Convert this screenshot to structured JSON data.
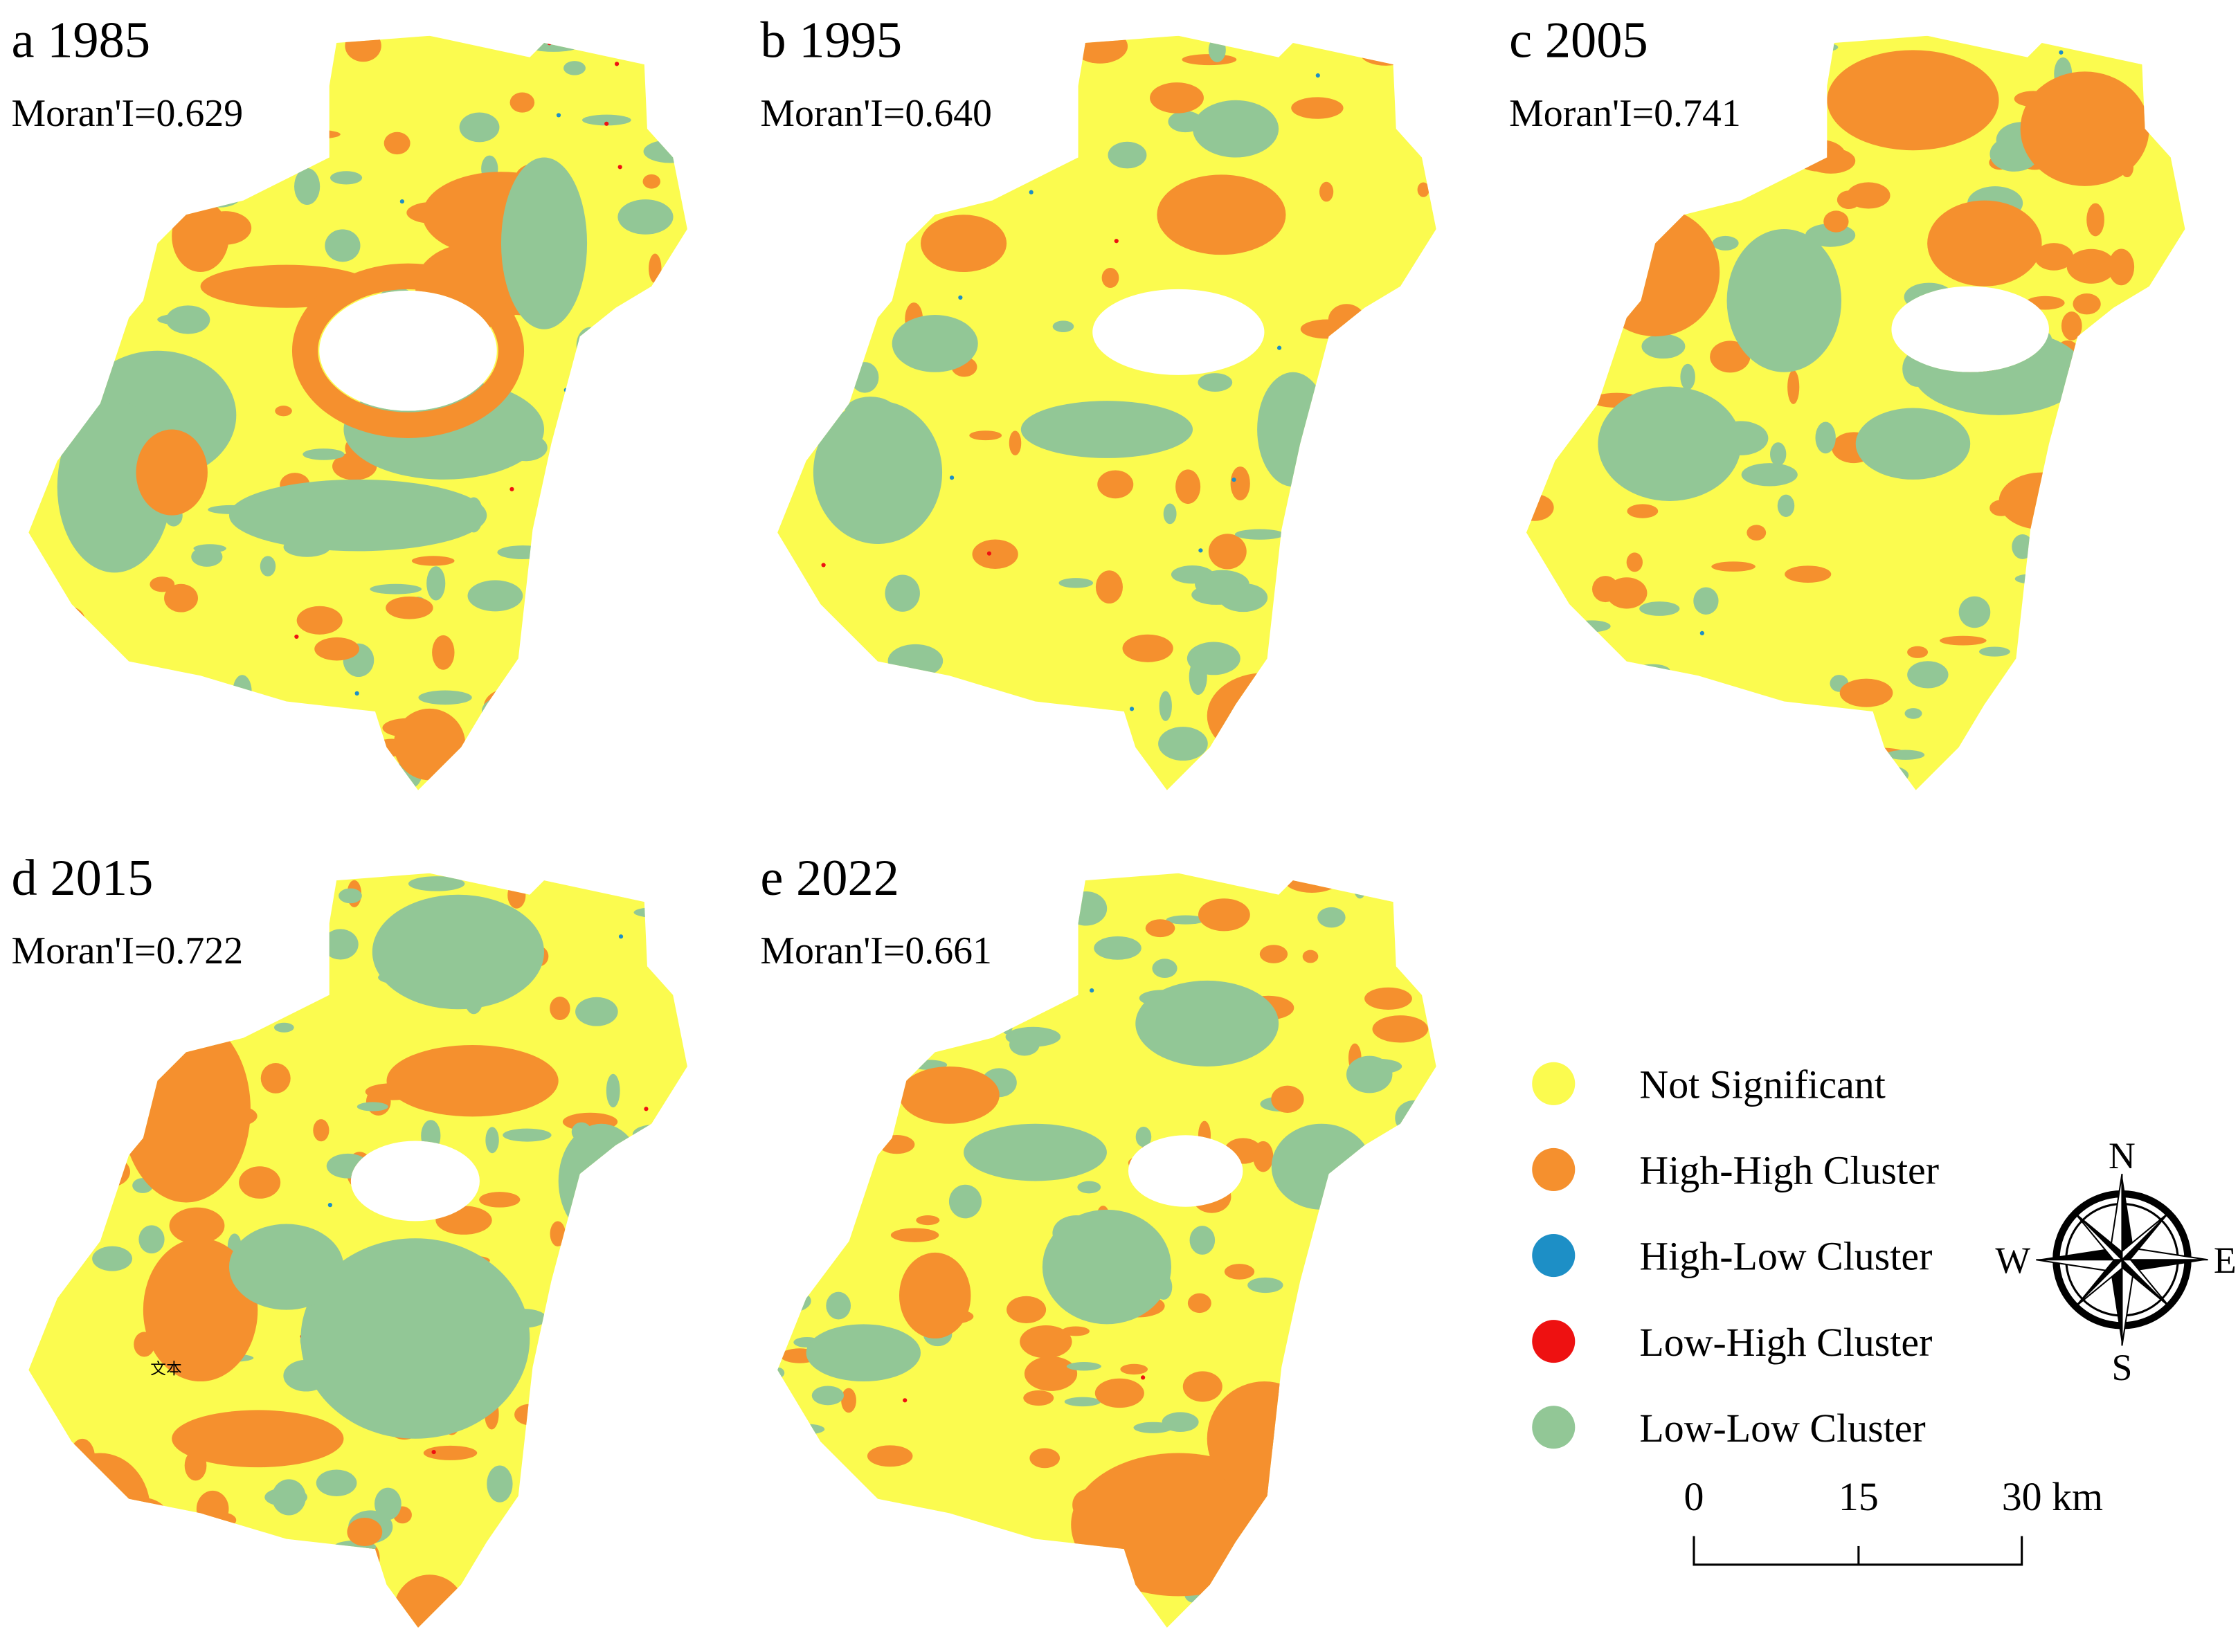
{
  "panels": [
    {
      "label": "a 1985",
      "moran": "Moran'I=0.629"
    },
    {
      "label": "b 1995",
      "moran": "Moran'I=0.640"
    },
    {
      "label": "c 2005",
      "moran": "Moran'I=0.741"
    },
    {
      "label": "d 2015",
      "moran": "Moran'I=0.722",
      "annotation": "文本"
    },
    {
      "label": "e 2022",
      "moran": "Moran'I=0.661"
    }
  ],
  "legend": [
    {
      "label": "Not Significant",
      "color": "#fbfb4f"
    },
    {
      "label": "High-High Cluster",
      "color": "#f5902e"
    },
    {
      "label": "High-Low Cluster",
      "color": "#1d8fc6"
    },
    {
      "label": "Low-High Cluster",
      "color": "#ee1111"
    },
    {
      "label": "Low-Low Cluster",
      "color": "#92c796"
    }
  ],
  "compass": {
    "n": "N",
    "e": "E",
    "s": "S",
    "w": "W"
  },
  "scale_bar": [
    "0",
    "15",
    "30 km"
  ]
}
